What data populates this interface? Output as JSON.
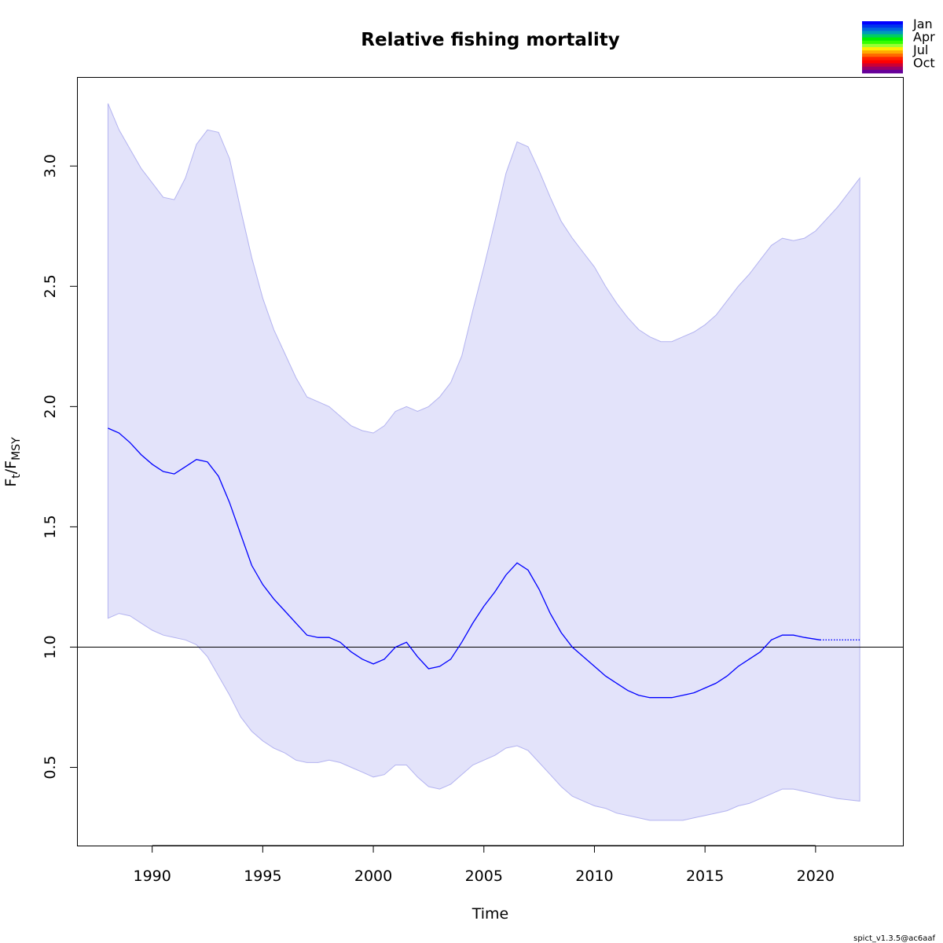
{
  "chart_data": {
    "type": "line",
    "title": "Relative fishing mortality",
    "xlabel": "Time",
    "ylabel_main": "F",
    "ylabel_sub1": "t",
    "ylabel_sep": "/F",
    "ylabel_sub2": "MSY",
    "xlim": [
      1986.6,
      2023.95
    ],
    "ylim": [
      0.175,
      3.37
    ],
    "x_ticks": [
      1990,
      1995,
      2000,
      2005,
      2010,
      2015,
      2020
    ],
    "y_ticks": [
      0.5,
      1.0,
      1.5,
      2.0,
      2.5,
      3.0
    ],
    "y_tick_labels": [
      "0.5",
      "1.0",
      "1.5",
      "2.0",
      "2.5",
      "3.0"
    ],
    "reference_line": 1.0,
    "grid": false,
    "legend_position": "top-right",
    "series": [
      {
        "role": "estimate",
        "style": "solid",
        "color": "#0000ff",
        "x": [
          1988.0,
          1988.5,
          1989.0,
          1989.5,
          1990.0,
          1990.5,
          1991.0,
          1991.5,
          1992.0,
          1992.5,
          1993.0,
          1993.5,
          1994.0,
          1994.5,
          1995.0,
          1995.5,
          1996.0,
          1996.5,
          1997.0,
          1997.5,
          1998.0,
          1998.5,
          1999.0,
          1999.5,
          2000.0,
          2000.5,
          2001.0,
          2001.5,
          2002.0,
          2002.5,
          2003.0,
          2003.5,
          2004.0,
          2004.5,
          2005.0,
          2005.5,
          2006.0,
          2006.5,
          2007.0,
          2007.5,
          2008.0,
          2008.5,
          2009.0,
          2009.5,
          2010.0,
          2010.5,
          2011.0,
          2011.5,
          2012.0,
          2012.5,
          2013.0,
          2013.5,
          2014.0,
          2014.5,
          2015.0,
          2015.5,
          2016.0,
          2016.5,
          2017.0,
          2017.5,
          2018.0,
          2018.5,
          2019.0,
          2019.5,
          2020.2
        ],
        "y": [
          1.91,
          1.89,
          1.85,
          1.8,
          1.76,
          1.73,
          1.72,
          1.75,
          1.78,
          1.77,
          1.71,
          1.6,
          1.47,
          1.34,
          1.26,
          1.2,
          1.15,
          1.1,
          1.05,
          1.04,
          1.04,
          1.02,
          0.98,
          0.95,
          0.93,
          0.95,
          1.0,
          1.02,
          0.96,
          0.91,
          0.92,
          0.95,
          1.02,
          1.1,
          1.17,
          1.23,
          1.3,
          1.35,
          1.32,
          1.24,
          1.14,
          1.06,
          1.0,
          0.96,
          0.92,
          0.88,
          0.85,
          0.82,
          0.8,
          0.79,
          0.79,
          0.79,
          0.8,
          0.81,
          0.83,
          0.85,
          0.88,
          0.92,
          0.95,
          0.98,
          1.03,
          1.05,
          1.05,
          1.04,
          1.03
        ]
      },
      {
        "role": "forecast",
        "style": "dotted",
        "color": "#0000ff",
        "x": [
          2020.2,
          2022.0
        ],
        "y": [
          1.03,
          1.03
        ]
      }
    ],
    "confidence_band": {
      "color": "#e3e3fa",
      "edge_color": "#b3b3f0",
      "x": [
        1988.0,
        1988.5,
        1989.0,
        1989.5,
        1990.0,
        1990.5,
        1991.0,
        1991.5,
        1992.0,
        1992.5,
        1993.0,
        1993.5,
        1994.0,
        1994.5,
        1995.0,
        1995.5,
        1996.0,
        1996.5,
        1997.0,
        1997.5,
        1998.0,
        1998.5,
        1999.0,
        1999.5,
        2000.0,
        2000.5,
        2001.0,
        2001.5,
        2002.0,
        2002.5,
        2003.0,
        2003.5,
        2004.0,
        2004.5,
        2005.0,
        2005.5,
        2006.0,
        2006.5,
        2007.0,
        2007.5,
        2008.0,
        2008.5,
        2009.0,
        2009.5,
        2010.0,
        2010.5,
        2011.0,
        2011.5,
        2012.0,
        2012.5,
        2013.0,
        2013.5,
        2014.0,
        2014.5,
        2015.0,
        2015.5,
        2016.0,
        2016.5,
        2017.0,
        2017.5,
        2018.0,
        2018.5,
        2019.0,
        2019.5,
        2020.0,
        2021.0,
        2022.0
      ],
      "lower": [
        1.12,
        1.14,
        1.13,
        1.1,
        1.07,
        1.05,
        1.04,
        1.03,
        1.01,
        0.96,
        0.88,
        0.8,
        0.71,
        0.65,
        0.61,
        0.58,
        0.56,
        0.53,
        0.52,
        0.52,
        0.53,
        0.52,
        0.5,
        0.48,
        0.46,
        0.47,
        0.51,
        0.51,
        0.46,
        0.42,
        0.41,
        0.43,
        0.47,
        0.51,
        0.53,
        0.55,
        0.58,
        0.59,
        0.57,
        0.52,
        0.47,
        0.42,
        0.38,
        0.36,
        0.34,
        0.33,
        0.31,
        0.3,
        0.29,
        0.28,
        0.28,
        0.28,
        0.28,
        0.29,
        0.3,
        0.31,
        0.32,
        0.34,
        0.35,
        0.37,
        0.39,
        0.41,
        0.41,
        0.4,
        0.39,
        0.37,
        0.36
      ],
      "upper": [
        3.26,
        3.15,
        3.07,
        2.99,
        2.93,
        2.87,
        2.86,
        2.95,
        3.09,
        3.15,
        3.14,
        3.03,
        2.82,
        2.62,
        2.45,
        2.32,
        2.22,
        2.12,
        2.04,
        2.02,
        2.0,
        1.96,
        1.92,
        1.9,
        1.89,
        1.92,
        1.98,
        2.0,
        1.98,
        2.0,
        2.04,
        2.1,
        2.21,
        2.4,
        2.58,
        2.77,
        2.97,
        3.1,
        3.08,
        2.98,
        2.87,
        2.77,
        2.7,
        2.64,
        2.58,
        2.5,
        2.43,
        2.37,
        2.32,
        2.29,
        2.27,
        2.27,
        2.29,
        2.31,
        2.34,
        2.38,
        2.44,
        2.5,
        2.55,
        2.61,
        2.67,
        2.7,
        2.69,
        2.7,
        2.73,
        2.83,
        2.95
      ]
    },
    "legend": {
      "labels": [
        "Jan",
        "Apr",
        "Jul",
        "Oct"
      ],
      "colors": [
        "#0000ff",
        "#0033ee",
        "#0066dd",
        "#0099bb",
        "#00cc66",
        "#00ee00",
        "#33ff00",
        "#99ff33",
        "#ffee00",
        "#ffaa00",
        "#ff6600",
        "#ff2200",
        "#ff0000",
        "#cc0033",
        "#990066",
        "#660099"
      ]
    },
    "footer": "spict_v1.3.5@ac6aaf"
  }
}
